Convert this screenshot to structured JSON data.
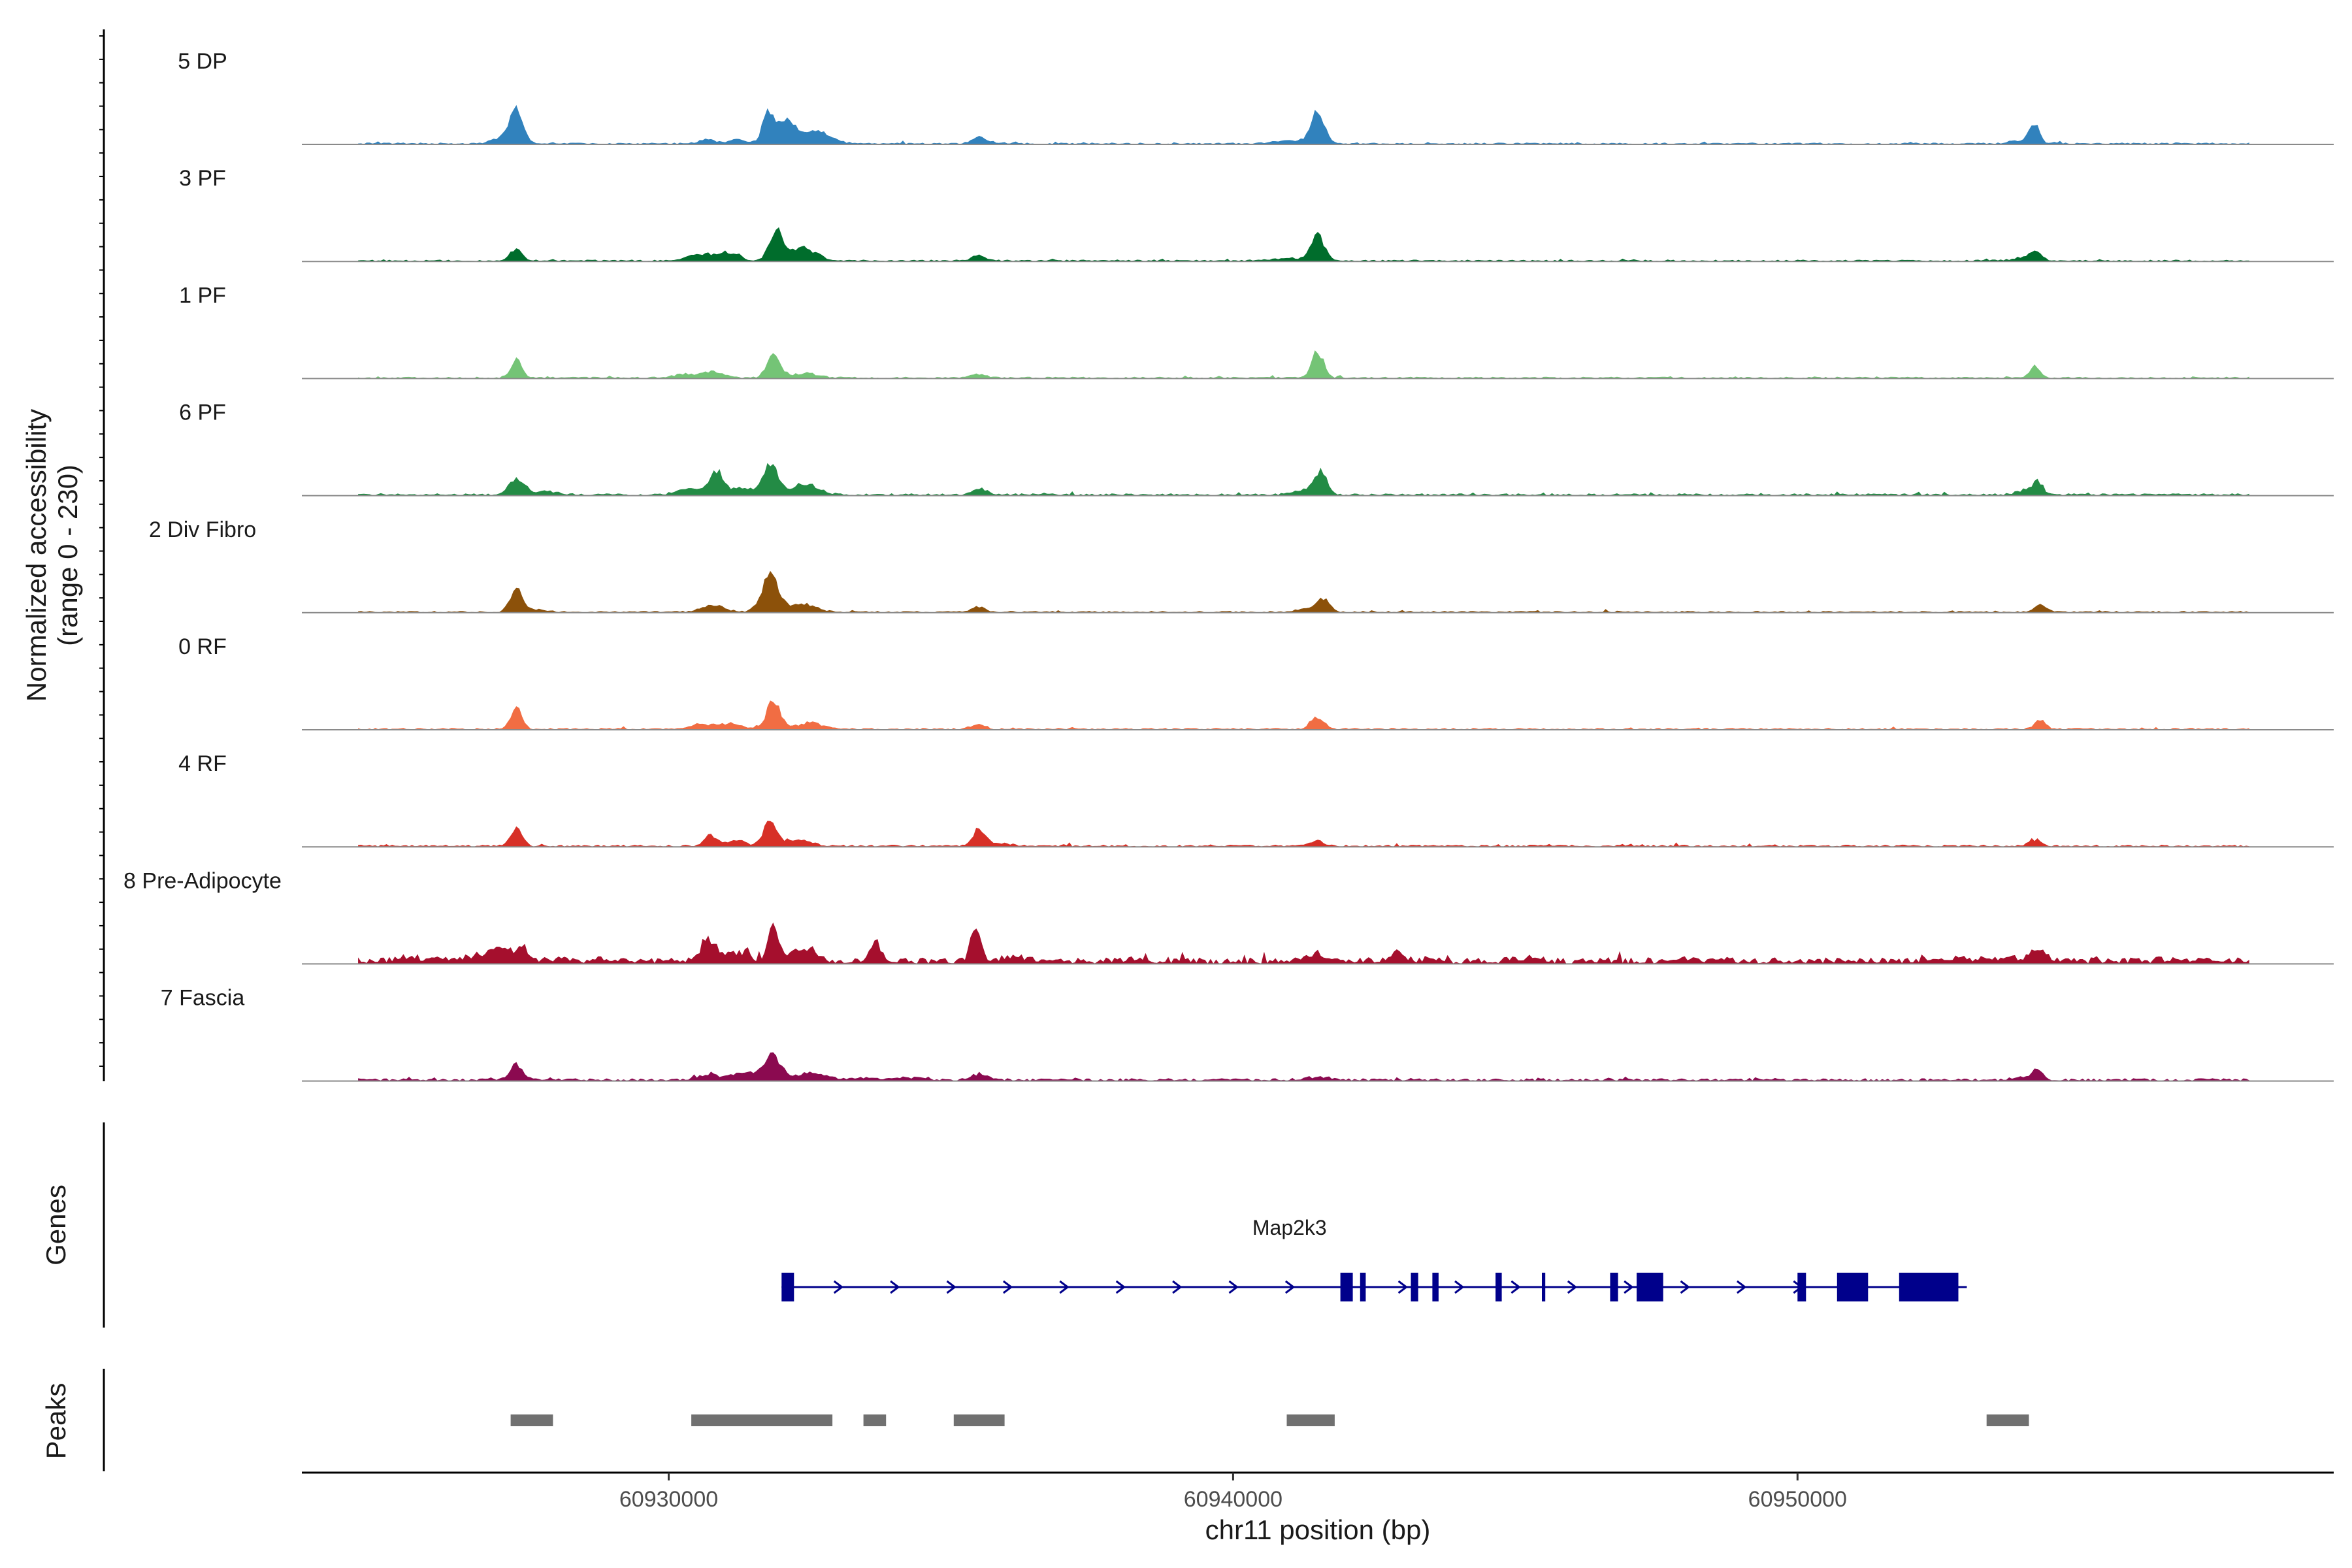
{
  "chart_data": {
    "type": "area",
    "title": "",
    "ylabel": "Normalized accessibility",
    "ylabel_range": "(range 0 - 230)",
    "xlabel": "chr11 position (bp)",
    "ylim": [
      0,
      230
    ],
    "xlim": [
      60923500,
      60959500
    ],
    "x_ticks": [
      60930000,
      60940000,
      60950000
    ],
    "x_tick_labels": [
      "60930000",
      "60940000",
      "60950000"
    ],
    "bin_step_bp": 50,
    "region_start": 60924500,
    "region_end": 60958000,
    "background_level": 2,
    "tracks": [
      {
        "name": "5 DP",
        "color": "#3182BD",
        "noise": 1.0,
        "peaks": [
          [
            60927300,
            66,
            110
          ],
          [
            60927100,
            14,
            200
          ],
          [
            60930700,
            8,
            150
          ],
          [
            60931200,
            9,
            120
          ],
          [
            60931750,
            55,
            100
          ],
          [
            60932100,
            50,
            170
          ],
          [
            60932600,
            25,
            160
          ],
          [
            60932900,
            8,
            160
          ],
          [
            60935500,
            13,
            120
          ],
          [
            60941500,
            61,
            115
          ],
          [
            60941050,
            6,
            300
          ],
          [
            60954200,
            38,
            85
          ],
          [
            60954000,
            6,
            200
          ]
        ]
      },
      {
        "name": "3 PF",
        "color": "#006D2C",
        "noise": 1.0,
        "peaks": [
          [
            60927300,
            27,
            100
          ],
          [
            60930600,
            14,
            240
          ],
          [
            60931100,
            15,
            160
          ],
          [
            60931900,
            61,
            120
          ],
          [
            60932400,
            25,
            220
          ],
          [
            60935500,
            11,
            130
          ],
          [
            60941500,
            48,
            120
          ],
          [
            60941000,
            5,
            300
          ],
          [
            60954200,
            18,
            110
          ],
          [
            60954000,
            4,
            220
          ]
        ]
      },
      {
        "name": "1 PF",
        "color": "#74C476",
        "noise": 1.0,
        "peaks": [
          [
            60927300,
            35,
            100
          ],
          [
            60930300,
            8,
            200
          ],
          [
            60930800,
            13,
            170
          ],
          [
            60931850,
            52,
            110
          ],
          [
            60932400,
            9,
            240
          ],
          [
            60935500,
            8,
            120
          ],
          [
            60941500,
            52,
            105
          ],
          [
            60954200,
            22,
            95
          ]
        ]
      },
      {
        "name": "6 PF",
        "color": "#238B45",
        "noise": 1.3,
        "peaks": [
          [
            60927300,
            32,
            130
          ],
          [
            60927800,
            6,
            250
          ],
          [
            60930400,
            13,
            220
          ],
          [
            60930850,
            44,
            120
          ],
          [
            60931300,
            14,
            200
          ],
          [
            60931800,
            60,
            130
          ],
          [
            60932400,
            20,
            250
          ],
          [
            60935500,
            11,
            140
          ],
          [
            60941300,
            10,
            200
          ],
          [
            60941550,
            42,
            110
          ],
          [
            60954000,
            8,
            150
          ],
          [
            60954250,
            22,
            100
          ]
        ]
      },
      {
        "name": "2 Div Fibro",
        "color": "#8C510A",
        "noise": 1.0,
        "peaks": [
          [
            60927300,
            42,
            110
          ],
          [
            60927600,
            5,
            200
          ],
          [
            60930800,
            14,
            200
          ],
          [
            60931800,
            70,
            150
          ],
          [
            60932400,
            16,
            220
          ],
          [
            60935500,
            11,
            110
          ],
          [
            60941300,
            7,
            180
          ],
          [
            60941600,
            28,
            110
          ],
          [
            60954300,
            16,
            100
          ]
        ]
      },
      {
        "name": "0 RF",
        "color": "#F16D43",
        "noise": 1.0,
        "peaks": [
          [
            60927300,
            41,
            100
          ],
          [
            60930600,
            10,
            220
          ],
          [
            60931100,
            11,
            170
          ],
          [
            60931850,
            54,
            120
          ],
          [
            60932500,
            13,
            230
          ],
          [
            60935500,
            9,
            110
          ],
          [
            60941500,
            26,
            110
          ],
          [
            60954300,
            17,
            95
          ]
        ]
      },
      {
        "name": "4 RF",
        "color": "#D73027",
        "noise": 1.2,
        "peaks": [
          [
            60927300,
            35,
            100
          ],
          [
            60930750,
            21,
            110
          ],
          [
            60931200,
            10,
            160
          ],
          [
            60931800,
            48,
            120
          ],
          [
            60932300,
            12,
            220
          ],
          [
            60935500,
            33,
            110
          ],
          [
            60935900,
            6,
            160
          ],
          [
            60941500,
            11,
            120
          ],
          [
            60954200,
            13,
            110
          ]
        ]
      },
      {
        "name": "8 Pre-Adipocyte",
        "color": "#A50F2D",
        "noise": 4.0,
        "peaks": [
          [
            60925400,
            6,
            250
          ],
          [
            60926200,
            6,
            300
          ],
          [
            60926600,
            9,
            150
          ],
          [
            60927000,
            28,
            150
          ],
          [
            60927400,
            22,
            150
          ],
          [
            60928100,
            6,
            150
          ],
          [
            60928900,
            6,
            150
          ],
          [
            60930700,
            40,
            150
          ],
          [
            60931200,
            16,
            200
          ],
          [
            60931850,
            79,
            90
          ],
          [
            60932400,
            22,
            200
          ],
          [
            60933650,
            43,
            90
          ],
          [
            60935450,
            81,
            90
          ],
          [
            60936100,
            10,
            150
          ],
          [
            60936800,
            4,
            200
          ],
          [
            60941500,
            14,
            150
          ],
          [
            60942900,
            21,
            110
          ],
          [
            60943500,
            6,
            150
          ],
          [
            60945200,
            6,
            200
          ],
          [
            60948000,
            5,
            120
          ],
          [
            60952700,
            6,
            200
          ],
          [
            60953300,
            6,
            150
          ],
          [
            60953700,
            9,
            150
          ],
          [
            60954250,
            22,
            150
          ],
          [
            60956700,
            6,
            200
          ]
        ]
      },
      {
        "name": "7 Fascia",
        "color": "#8B0A50",
        "noise": 1.6,
        "peaks": [
          [
            60927300,
            30,
            110
          ],
          [
            60930700,
            9,
            200
          ],
          [
            60931400,
            15,
            240
          ],
          [
            60931850,
            46,
            140
          ],
          [
            60932500,
            13,
            250
          ],
          [
            60933400,
            4,
            200
          ],
          [
            60934200,
            5,
            200
          ],
          [
            60935500,
            12,
            130
          ],
          [
            60941500,
            6,
            200
          ],
          [
            60954250,
            18,
            100
          ],
          [
            60954000,
            5,
            200
          ]
        ]
      }
    ]
  },
  "axes": {
    "genes_label": "Genes",
    "peaks_label": "Peaks"
  },
  "gene": {
    "name": "Map2k3",
    "color": "#00008B",
    "strand": "+",
    "start": 60932000,
    "end": 60953000,
    "exons": [
      [
        60932000,
        60932220
      ],
      [
        60941900,
        60942120
      ],
      [
        60942250,
        60942350
      ],
      [
        60943150,
        60943280
      ],
      [
        60943530,
        60943640
      ],
      [
        60944650,
        60944760
      ],
      [
        60945470,
        60945530
      ],
      [
        60946680,
        60946820
      ],
      [
        60947150,
        60947620
      ],
      [
        60950000,
        60950150
      ],
      [
        60950700,
        60951250
      ],
      [
        60951800,
        60952850
      ]
    ]
  },
  "peaks": {
    "color": "#707070",
    "ranges": [
      [
        60927200,
        60927950
      ],
      [
        60930400,
        60932900
      ],
      [
        60933450,
        60933850
      ],
      [
        60935050,
        60935950
      ],
      [
        60940950,
        60941800
      ],
      [
        60953350,
        60954100
      ]
    ]
  }
}
